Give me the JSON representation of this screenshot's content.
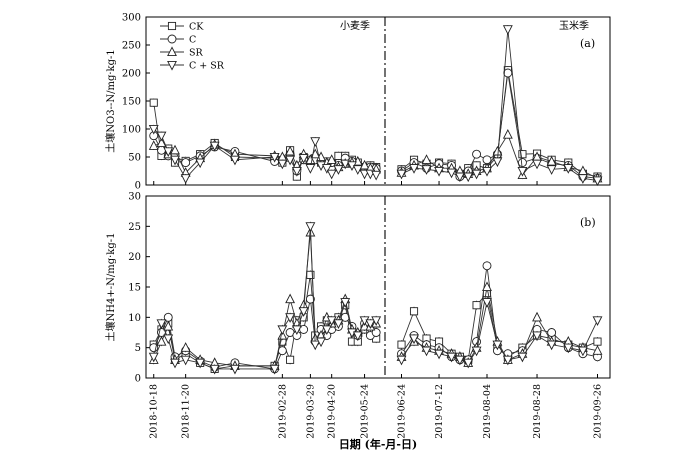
{
  "figure": {
    "xlabel": "日期 (年-月-日)",
    "season_wheat": "小麦季",
    "season_maize": "玉米季",
    "legend": [
      "CK",
      "C",
      "SR",
      "C + SR"
    ],
    "x_ticks": [
      "2018-10-18",
      "2018-11-20",
      "2019-02-28",
      "2019-03-29",
      "2019-04-20",
      "2019-05-24",
      "2019-06-24",
      "2019-07-12",
      "2019-08-04",
      "2019-08-28",
      "2019-09-26"
    ]
  },
  "chart_data": [
    {
      "type": "line",
      "panel_label": "(a)",
      "ylabel": "土壤NO3--N/mg·kg-1",
      "ylim": [
        0,
        300
      ],
      "yticks": [
        0,
        50,
        100,
        150,
        200,
        250,
        300
      ],
      "grid": false,
      "legend_position": "top-left",
      "wheat_dates": [
        "2018-10-18",
        "2018-10-26",
        "2018-11-02",
        "2018-11-09",
        "2018-11-20",
        "2018-12-05",
        "2018-12-20",
        "2019-01-10",
        "2019-02-20",
        "2019-02-28",
        "2019-03-08",
        "2019-03-15",
        "2019-03-22",
        "2019-03-29",
        "2019-04-03",
        "2019-04-09",
        "2019-04-15",
        "2019-04-20",
        "2019-04-27",
        "2019-05-04",
        "2019-05-11",
        "2019-05-17",
        "2019-05-24",
        "2019-05-30",
        "2019-06-05"
      ],
      "maize_dates": [
        "2019-06-24",
        "2019-06-30",
        "2019-07-06",
        "2019-07-12",
        "2019-07-18",
        "2019-07-22",
        "2019-07-26",
        "2019-07-30",
        "2019-08-04",
        "2019-08-09",
        "2019-08-14",
        "2019-08-21",
        "2019-08-28",
        "2019-09-04",
        "2019-09-12",
        "2019-09-19",
        "2019-09-26"
      ],
      "series": [
        {
          "name": "CK",
          "marker": "square",
          "wheat": [
            147,
            52,
            65,
            40,
            43,
            55,
            75,
            50,
            48,
            40,
            62,
            15,
            50,
            45,
            48,
            40,
            42,
            32,
            52,
            52,
            45,
            40,
            32,
            35,
            32
          ],
          "maize": [
            28,
            45,
            38,
            40,
            38,
            20,
            30,
            35,
            30,
            52,
            205,
            55,
            56,
            45,
            40,
            20,
            15
          ]
        },
        {
          "name": "C",
          "marker": "circle",
          "wheat": [
            88,
            62,
            52,
            52,
            40,
            52,
            68,
            60,
            42,
            45,
            55,
            25,
            45,
            40,
            45,
            42,
            38,
            40,
            35,
            48,
            42,
            35,
            30,
            32,
            30
          ],
          "maize": [
            25,
            40,
            30,
            38,
            35,
            15,
            25,
            55,
            45,
            55,
            200,
            40,
            48,
            38,
            35,
            15,
            12
          ]
        },
        {
          "name": "SR",
          "marker": "triangle",
          "wheat": [
            70,
            75,
            55,
            62,
            22,
            48,
            72,
            55,
            52,
            50,
            60,
            35,
            55,
            45,
            55,
            50,
            40,
            45,
            32,
            38,
            40,
            42,
            35,
            30,
            28
          ],
          "maize": [
            22,
            35,
            45,
            30,
            30,
            25,
            20,
            25,
            30,
            60,
            90,
            18,
            50,
            42,
            32,
            25,
            12
          ]
        },
        {
          "name": "C + SR",
          "marker": "triangle-down",
          "wheat": [
            100,
            88,
            60,
            45,
            12,
            40,
            70,
            45,
            50,
            38,
            45,
            25,
            48,
            30,
            78,
            35,
            30,
            20,
            28,
            38,
            35,
            28,
            20,
            20,
            18
          ],
          "maize": [
            20,
            30,
            28,
            25,
            22,
            15,
            15,
            20,
            25,
            42,
            278,
            25,
            38,
            28,
            30,
            12,
            8
          ]
        }
      ]
    },
    {
      "type": "line",
      "panel_label": "(b)",
      "ylabel": "土壤NH4+-N/mg·kg-1",
      "ylim": [
        0,
        30
      ],
      "yticks": [
        0,
        5,
        10,
        15,
        20,
        25,
        30
      ],
      "grid": false,
      "wheat_dates": [
        "2018-10-18",
        "2018-10-26",
        "2018-11-02",
        "2018-11-09",
        "2018-11-20",
        "2018-12-05",
        "2018-12-20",
        "2019-01-10",
        "2019-02-20",
        "2019-02-28",
        "2019-03-08",
        "2019-03-15",
        "2019-03-22",
        "2019-03-29",
        "2019-04-03",
        "2019-04-09",
        "2019-04-15",
        "2019-04-20",
        "2019-04-27",
        "2019-05-04",
        "2019-05-11",
        "2019-05-17",
        "2019-05-24",
        "2019-05-30",
        "2019-06-05"
      ],
      "maize_dates": [
        "2019-06-24",
        "2019-06-30",
        "2019-07-06",
        "2019-07-12",
        "2019-07-18",
        "2019-07-22",
        "2019-07-26",
        "2019-07-30",
        "2019-08-04",
        "2019-08-09",
        "2019-08-14",
        "2019-08-21",
        "2019-08-28",
        "2019-09-04",
        "2019-09-12",
        "2019-09-19",
        "2019-09-26"
      ],
      "series": [
        {
          "name": "CK",
          "marker": "square",
          "wheat": [
            5.5,
            8.0,
            9.0,
            3.0,
            4.0,
            2.5,
            1.5,
            2.0,
            2.0,
            6.0,
            3.0,
            9.5,
            10.0,
            17.0,
            7.0,
            8.5,
            9.5,
            9.0,
            10.0,
            12.0,
            6.0,
            6.0,
            8.0,
            8.0,
            6.5
          ],
          "maize": [
            5.5,
            11.0,
            6.5,
            6.0,
            4.0,
            3.5,
            3.0,
            12.0,
            14.0,
            5.0,
            3.5,
            5.0,
            7.0,
            6.5,
            5.5,
            5.0,
            6.0
          ]
        },
        {
          "name": "C",
          "marker": "circle",
          "wheat": [
            5.0,
            7.5,
            10.0,
            3.5,
            4.5,
            2.8,
            1.8,
            2.5,
            1.5,
            4.5,
            7.5,
            7.0,
            8.0,
            13.0,
            6.0,
            8.0,
            7.0,
            8.0,
            8.5,
            10.0,
            8.5,
            7.0,
            9.0,
            7.0,
            7.5
          ],
          "maize": [
            4.0,
            7.0,
            5.5,
            5.0,
            3.5,
            3.0,
            3.0,
            6.0,
            18.5,
            4.5,
            4.0,
            4.5,
            8.0,
            7.5,
            5.0,
            4.0,
            3.5
          ]
        },
        {
          "name": "SR",
          "marker": "triangle",
          "wheat": [
            3.0,
            6.0,
            8.5,
            3.0,
            5.0,
            3.0,
            2.5,
            2.0,
            2.0,
            7.0,
            13.0,
            9.0,
            12.0,
            24.0,
            6.5,
            7.0,
            10.0,
            9.0,
            9.5,
            13.0,
            8.0,
            7.5,
            8.5,
            8.5,
            9.0
          ],
          "maize": [
            3.5,
            6.0,
            5.0,
            4.5,
            4.0,
            3.5,
            2.5,
            5.0,
            15.0,
            6.0,
            3.0,
            4.0,
            10.0,
            6.0,
            6.0,
            5.0,
            4.5
          ]
        },
        {
          "name": "C + SR",
          "marker": "triangle-down",
          "wheat": [
            3.5,
            9.0,
            6.5,
            2.5,
            3.0,
            2.5,
            1.5,
            1.5,
            1.5,
            8.0,
            10.0,
            8.0,
            11.0,
            25.0,
            5.5,
            6.0,
            8.0,
            9.5,
            9.0,
            12.5,
            7.5,
            7.0,
            9.5,
            9.0,
            9.5
          ],
          "maize": [
            3.0,
            6.5,
            4.5,
            4.0,
            3.5,
            3.0,
            2.5,
            4.5,
            12.5,
            5.5,
            3.0,
            3.5,
            7.0,
            5.5,
            5.0,
            4.5,
            9.5
          ]
        }
      ]
    }
  ]
}
